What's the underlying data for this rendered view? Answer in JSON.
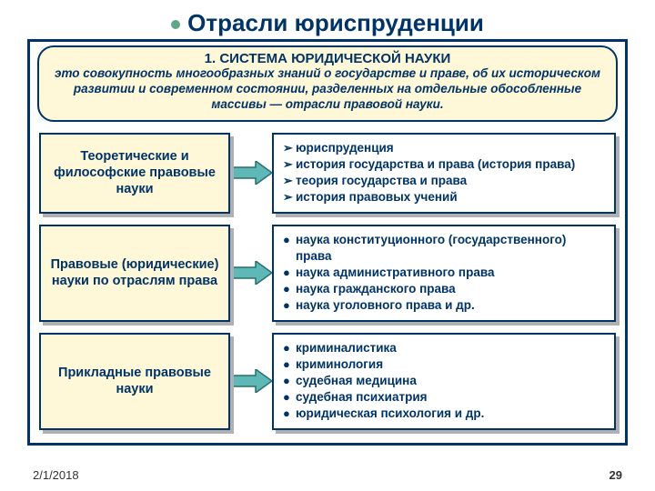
{
  "title": "Отрасли юриспруденции",
  "header": {
    "line1": "1. СИСТЕМА ЮРИДИЧЕСКОЙ НАУКИ",
    "text": "это совокупность многообразных знаний о государстве и праве, об их историческом развитии и современном состоянии, разделенных на отдельные обособленные массивы — отрасли правовой науки."
  },
  "rows": [
    {
      "left": "Теоретические и философские правовые науки",
      "bullet": "➢",
      "items": [
        "юриспруденция",
        "история государства и права (история права)",
        "теория государства и права",
        "история правовых учений"
      ]
    },
    {
      "left": "Правовые (юридические) науки по отраслям права",
      "bullet": "●",
      "items": [
        "наука конституционного (государственного) права",
        "наука административного права",
        "наука гражданского права",
        "наука уголовного права и др."
      ]
    },
    {
      "left": "Прикладные правовые науки",
      "bullet": "●",
      "items": [
        "криминалистика",
        "криминология",
        "судебная медицина",
        "судебная психиатрия",
        "юридическая психология и др."
      ]
    }
  ],
  "footer": {
    "date": "2/1/2018",
    "page": "29"
  },
  "colors": {
    "navy": "#003366",
    "cream": "#fff8d8",
    "shadow": "#b0b0b0",
    "arrow_fill": "#5fb8b8",
    "arrow_stroke": "#2a6e6e"
  },
  "arrow": {
    "width": 46,
    "height": 28
  }
}
